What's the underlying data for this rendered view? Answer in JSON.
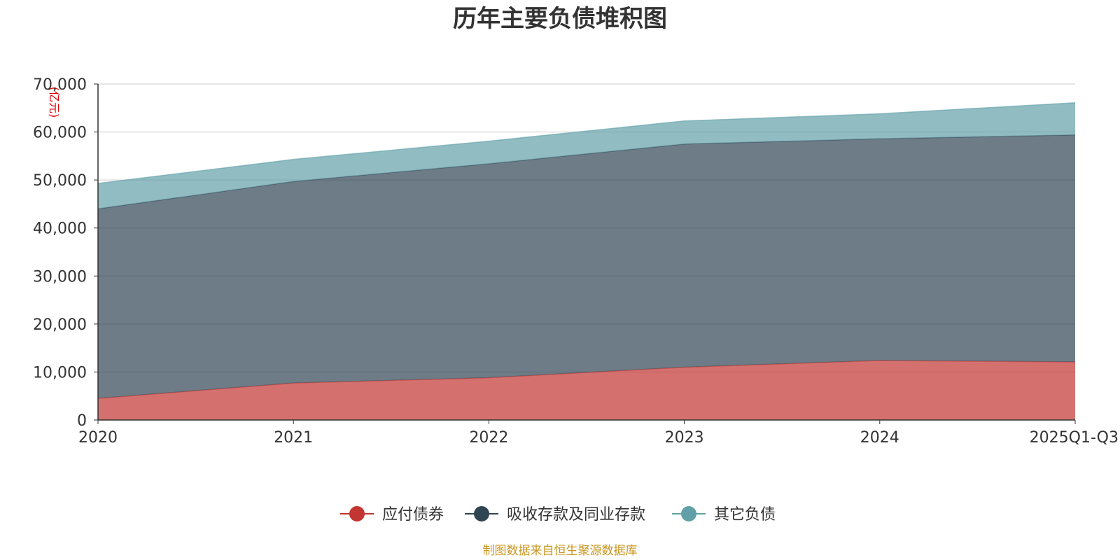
{
  "chart_data": {
    "type": "area",
    "stacked": true,
    "title": "历年主要负债堆积图",
    "unit_label": "(亿元)",
    "categories": [
      "2020",
      "2021",
      "2022",
      "2023",
      "2024",
      "2025Q1-Q3"
    ],
    "ylim": [
      0,
      70000
    ],
    "yticks": [
      0,
      10000,
      20000,
      30000,
      40000,
      50000,
      60000,
      70000
    ],
    "ytick_labels": [
      "0",
      "10,000",
      "20,000",
      "30,000",
      "40,000",
      "50,000",
      "60,000",
      "70,000"
    ],
    "grid": true,
    "legend_position": "bottom",
    "series": [
      {
        "name": "应付债券",
        "color": "#c23531",
        "values": [
          4500,
          7700,
          8800,
          11000,
          12400,
          12100
        ]
      },
      {
        "name": "吸收存款及同业存款",
        "color": "#2f4554",
        "values": [
          39500,
          42000,
          44600,
          46500,
          46200,
          47300
        ]
      },
      {
        "name": "其它负债",
        "color": "#61a0a8",
        "values": [
          5300,
          4600,
          4700,
          4800,
          5200,
          6700
        ]
      }
    ],
    "source_text": "制图数据来自恒生聚源数据库"
  }
}
